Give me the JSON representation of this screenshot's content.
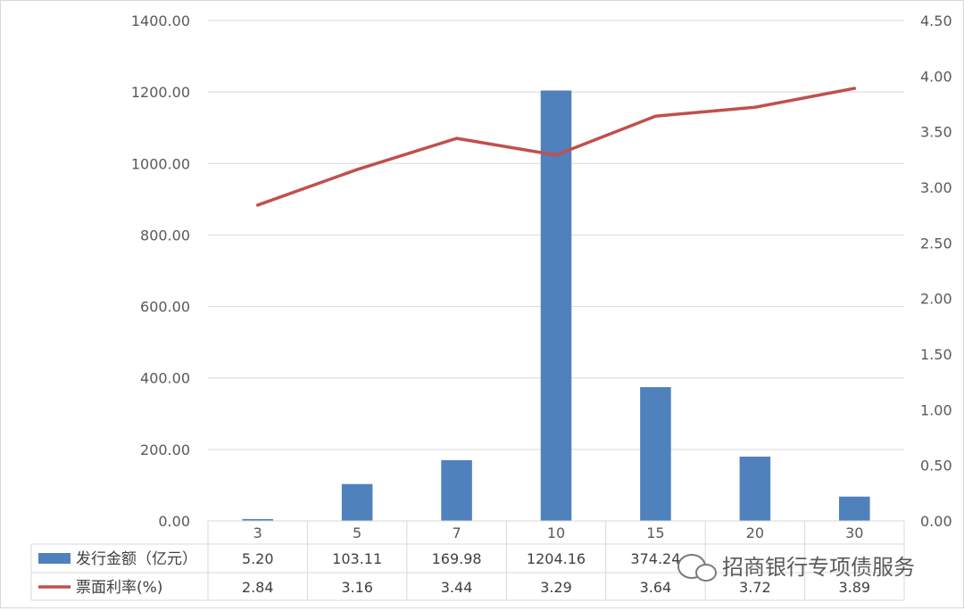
{
  "chart_data": {
    "type": "bar",
    "categories": [
      "3",
      "5",
      "7",
      "10",
      "15",
      "20",
      "30"
    ],
    "series": [
      {
        "name": "发行金额（亿元）",
        "type": "bar",
        "axis": "left",
        "color": "#4f81bd",
        "values": [
          5.2,
          103.11,
          169.98,
          1204.16,
          374.24,
          179.91,
          67.98
        ],
        "labels": [
          "5.20",
          "103.11",
          "169.98",
          "1204.16",
          "374.24",
          "",
          ""
        ]
      },
      {
        "name": "票面利率(%)",
        "type": "line",
        "axis": "right",
        "color": "#c0504d",
        "values": [
          2.84,
          3.16,
          3.44,
          3.29,
          3.64,
          3.72,
          3.89
        ],
        "labels": [
          "2.84",
          "3.16",
          "3.44",
          "3.29",
          "3.64",
          "3.72",
          "3.89"
        ]
      }
    ],
    "y_left": {
      "ylim": [
        0,
        1400
      ],
      "ticks": [
        "0.00",
        "200.00",
        "400.00",
        "600.00",
        "800.00",
        "1000.00",
        "1200.00",
        "1400.00"
      ]
    },
    "y_right": {
      "ylim": [
        0,
        4.5
      ],
      "ticks": [
        "0.00",
        "0.50",
        "1.00",
        "1.50",
        "2.00",
        "2.50",
        "3.00",
        "3.50",
        "4.00",
        "4.50"
      ]
    },
    "grid": true,
    "legend": "data-table",
    "watermark": "招商银行专项债服务"
  }
}
